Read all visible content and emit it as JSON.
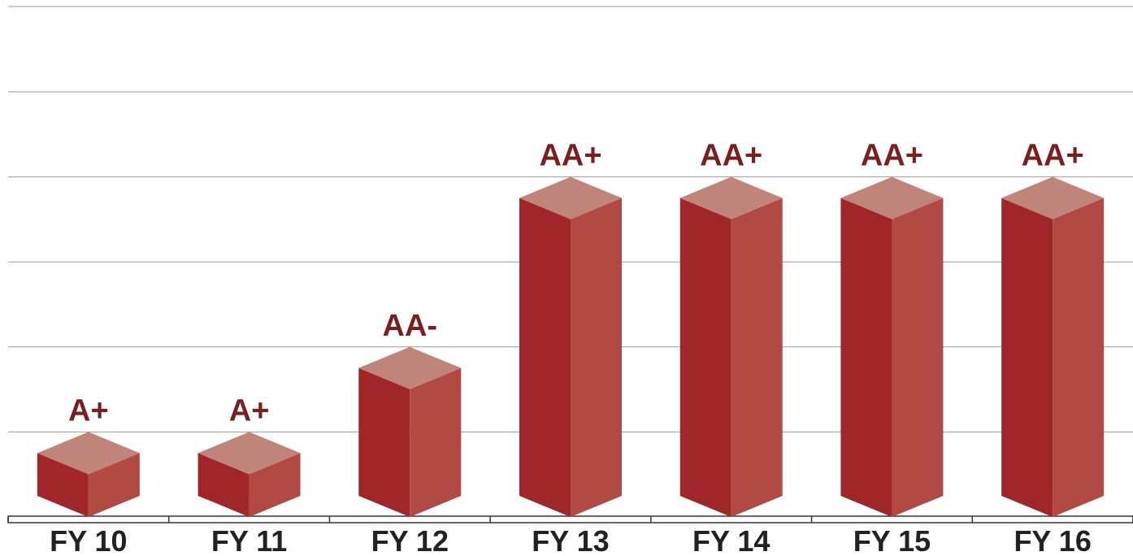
{
  "chart_data": {
    "type": "bar",
    "style": "3d-column",
    "title": "",
    "xlabel": "",
    "ylabel": "",
    "categories": [
      "FY 10",
      "FY 11",
      "FY 12",
      "FY 13",
      "FY 14",
      "FY 15",
      "FY 16"
    ],
    "labels": [
      "A+",
      "A+",
      "AA-",
      "AA+",
      "AA+",
      "AA+",
      "AA+"
    ],
    "values": [
      1,
      1,
      2,
      4,
      4,
      4,
      4
    ],
    "ylim": [
      0,
      5
    ],
    "grid": true,
    "legend": "none",
    "colors": {
      "bar_front": "#a0262a",
      "bar_side": "#b04a42",
      "bar_top": "#bf857a",
      "label": "#7a1f1f",
      "category_text": "#222222",
      "grid": "#9a9a9a",
      "axis": "#333333"
    }
  }
}
